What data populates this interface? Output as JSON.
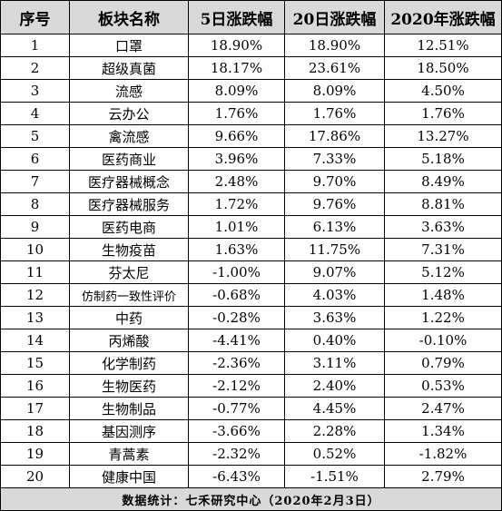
{
  "table": {
    "headers": [
      "序号",
      "板块名称",
      "5日涨跌幅",
      "20日涨跌幅",
      "2020年涨跌幅"
    ],
    "rows": [
      [
        "1",
        "口罩",
        "18.90%",
        "18.90%",
        "12.51%"
      ],
      [
        "2",
        "超级真菌",
        "18.17%",
        "23.61%",
        "18.50%"
      ],
      [
        "3",
        "流感",
        "8.09%",
        "8.09%",
        "4.50%"
      ],
      [
        "4",
        "云办公",
        "1.76%",
        "1.76%",
        "1.76%"
      ],
      [
        "5",
        "禽流感",
        "9.66%",
        "17.86%",
        "13.27%"
      ],
      [
        "6",
        "医药商业",
        "3.96%",
        "7.33%",
        "5.18%"
      ],
      [
        "7",
        "医疗器械概念",
        "2.48%",
        "9.70%",
        "8.49%"
      ],
      [
        "8",
        "医疗器械服务",
        "1.72%",
        "9.76%",
        "8.81%"
      ],
      [
        "9",
        "医药电商",
        "1.01%",
        "6.13%",
        "3.63%"
      ],
      [
        "10",
        "生物疫苗",
        "1.63%",
        "11.75%",
        "7.31%"
      ],
      [
        "11",
        "芬太尼",
        "-1.00%",
        "9.07%",
        "5.12%"
      ],
      [
        "12",
        "仿制药一致性评价",
        "-0.68%",
        "4.03%",
        "1.48%"
      ],
      [
        "13",
        "中药",
        "-0.28%",
        "3.63%",
        "1.22%"
      ],
      [
        "14",
        "丙烯酸",
        "-4.41%",
        "0.40%",
        "-0.10%"
      ],
      [
        "15",
        "化学制药",
        "-2.36%",
        "3.11%",
        "0.79%"
      ],
      [
        "16",
        "生物医药",
        "-2.12%",
        "2.40%",
        "0.53%"
      ],
      [
        "17",
        "生物制品",
        "-0.77%",
        "4.45%",
        "2.47%"
      ],
      [
        "18",
        "基因测序",
        "-3.66%",
        "2.28%",
        "1.34%"
      ],
      [
        "19",
        "青蒿素",
        "-2.32%",
        "0.52%",
        "-1.82%"
      ],
      [
        "20",
        "健康中国",
        "-6.43%",
        "-1.51%",
        "2.79%"
      ]
    ],
    "footer": "数据统计：七禾研究中心（2020年2月3日）"
  }
}
